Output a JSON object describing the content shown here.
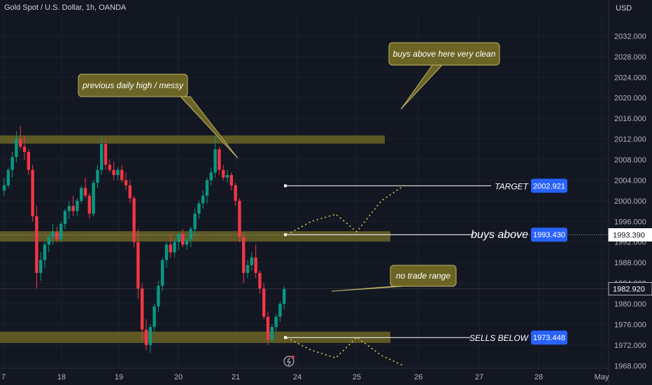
{
  "header": {
    "title": "Gold Spot / U.S. Dollar, 1h, OANDA",
    "currency": "USD"
  },
  "chart_data": {
    "type": "candlestick",
    "x_axis": {
      "ticks": [
        "7",
        "18",
        "19",
        "20",
        "21",
        "24",
        "25",
        "26",
        "27",
        "28",
        "May"
      ]
    },
    "y_axis": {
      "range": [
        1967.5,
        2036.0
      ],
      "ticks": [
        "2032.000",
        "2028.000",
        "2024.000",
        "2020.000",
        "2016.000",
        "2012.000",
        "2008.000",
        "2004.000",
        "2000.000",
        "1996.000",
        "1992.000",
        "1988.000",
        "1984.000",
        "1980.000",
        "1976.000",
        "1972.000",
        "1968.000"
      ],
      "price_labels": [
        {
          "text": "1993.390",
          "value": 1993.39,
          "style": "light"
        },
        {
          "text": "1982.920",
          "value": 1982.92,
          "style": "dark"
        }
      ]
    },
    "zones": [
      {
        "top": 2012.7,
        "bottom": 2011.1,
        "start": 0,
        "end": 550
      },
      {
        "top": 1994.1,
        "bottom": 1992.1,
        "start": 0,
        "end": 558
      },
      {
        "top": 1974.6,
        "bottom": 1972.4,
        "start": 0,
        "end": 558
      }
    ],
    "levels": [
      {
        "label": "TARGET",
        "price_text": "2002.921",
        "value": 2002.921
      },
      {
        "label": "buys above",
        "price_text": "1993.430",
        "value": 1993.43
      },
      {
        "label": "SELLS BELOW",
        "price_text": "1973.448",
        "value": 1973.448
      }
    ],
    "annotations": [
      {
        "text": "previous daily high / messy"
      },
      {
        "text": "buys above here very clean"
      },
      {
        "text": "no trade range"
      }
    ],
    "projection_up": [
      [
        1993.4,
        1996.0,
        1997.4,
        1994.0,
        2000.0,
        2003.0
      ]
    ],
    "projection_down": [
      [
        1973.4,
        1971.0,
        1969.5,
        1973.5,
        1970.0,
        1967.9
      ]
    ],
    "candles": [
      [
        2002.0,
        2004.5,
        2001.0,
        2003.0
      ],
      [
        2003.0,
        2006.5,
        2002.5,
        2006.0
      ],
      [
        2006.0,
        2009.5,
        2004.5,
        2008.5
      ],
      [
        2008.5,
        2013.5,
        2007.5,
        2012.0
      ],
      [
        2012.0,
        2014.5,
        2010.0,
        2010.5
      ],
      [
        2010.5,
        2012.5,
        2008.0,
        2009.5
      ],
      [
        2009.5,
        2010.0,
        2005.0,
        2006.0
      ],
      [
        2006.0,
        2007.0,
        1996.0,
        1997.0
      ],
      [
        1997.0,
        1999.0,
        1983.0,
        1986.0
      ],
      [
        1986.0,
        1990.0,
        1984.5,
        1988.5
      ],
      [
        1988.5,
        1992.0,
        1987.0,
        1991.5
      ],
      [
        1991.5,
        1993.5,
        1990.0,
        1993.0
      ],
      [
        1993.0,
        1995.5,
        1991.5,
        1994.0
      ],
      [
        1994.0,
        1995.0,
        1992.0,
        1992.5
      ],
      [
        1992.5,
        1996.0,
        1992.0,
        1995.5
      ],
      [
        1995.5,
        1998.5,
        1994.5,
        1998.0
      ],
      [
        1998.0,
        2000.0,
        1996.5,
        1999.0
      ],
      [
        1999.0,
        2001.0,
        1997.0,
        1998.0
      ],
      [
        1998.0,
        2000.5,
        1997.0,
        2000.0
      ],
      [
        2000.0,
        2003.0,
        1999.5,
        2002.5
      ],
      [
        2002.5,
        2004.5,
        2000.5,
        2001.0
      ],
      [
        2001.0,
        2001.5,
        1996.5,
        1997.5
      ],
      [
        1997.5,
        2004.0,
        1997.0,
        2003.5
      ],
      [
        2003.5,
        2007.0,
        2002.5,
        2006.0
      ],
      [
        2006.0,
        2012.5,
        2005.0,
        2011.0
      ],
      [
        2011.0,
        2012.0,
        2006.0,
        2007.0
      ],
      [
        2007.0,
        2008.0,
        2005.5,
        2006.0
      ],
      [
        2006.0,
        2007.5,
        2004.0,
        2005.0
      ],
      [
        2005.0,
        2006.5,
        2004.0,
        2006.0
      ],
      [
        2006.0,
        2007.0,
        2003.5,
        2004.0
      ],
      [
        2004.0,
        2005.5,
        2002.0,
        2003.0
      ],
      [
        2003.0,
        2004.0,
        1999.5,
        2000.5
      ],
      [
        2000.5,
        2001.0,
        1991.0,
        1992.0
      ],
      [
        1992.0,
        1994.5,
        1981.0,
        1983.0
      ],
      [
        1983.0,
        1984.0,
        1973.0,
        1975.0
      ],
      [
        1975.0,
        1977.0,
        1971.0,
        1972.0
      ],
      [
        1972.0,
        1976.0,
        1970.5,
        1975.5
      ],
      [
        1975.5,
        1980.0,
        1974.5,
        1979.5
      ],
      [
        1979.5,
        1984.5,
        1978.5,
        1983.5
      ],
      [
        1983.5,
        1989.0,
        1982.5,
        1988.5
      ],
      [
        1988.5,
        1992.0,
        1987.0,
        1991.5
      ],
      [
        1991.5,
        1993.5,
        1989.0,
        1990.0
      ],
      [
        1990.0,
        1992.5,
        1989.0,
        1992.0
      ],
      [
        1992.0,
        1994.0,
        1990.5,
        1993.5
      ],
      [
        1993.5,
        1994.5,
        1991.0,
        1991.5
      ],
      [
        1991.5,
        1993.0,
        1990.5,
        1992.5
      ],
      [
        1992.5,
        1995.0,
        1991.0,
        1994.5
      ],
      [
        1994.5,
        1998.5,
        1993.0,
        1997.5
      ],
      [
        1997.5,
        2000.0,
        1996.5,
        1999.5
      ],
      [
        1999.5,
        2002.0,
        1998.5,
        2001.0
      ],
      [
        2001.0,
        2004.5,
        1999.5,
        2004.0
      ],
      [
        2004.0,
        2006.5,
        2003.0,
        2005.5
      ],
      [
        2005.5,
        2012.5,
        2004.5,
        2010.0
      ],
      [
        2010.0,
        2010.5,
        2005.0,
        2006.0
      ],
      [
        2006.0,
        2007.0,
        2004.0,
        2004.5
      ],
      [
        2004.5,
        2006.0,
        2003.5,
        2005.0
      ],
      [
        2005.0,
        2005.5,
        2002.0,
        2003.0
      ],
      [
        2003.0,
        2003.5,
        1999.0,
        2000.0
      ],
      [
        2000.0,
        2000.5,
        1992.0,
        1993.0
      ],
      [
        1993.0,
        1994.0,
        1984.0,
        1986.0
      ],
      [
        1986.0,
        1988.5,
        1985.0,
        1987.5
      ],
      [
        1987.5,
        1990.0,
        1986.5,
        1989.0
      ],
      [
        1989.0,
        1991.5,
        1985.0,
        1986.0
      ],
      [
        1986.0,
        1986.5,
        1982.0,
        1983.0
      ],
      [
        1983.0,
        1984.0,
        1977.0,
        1977.5
      ],
      [
        1977.5,
        1978.5,
        1972.0,
        1973.0
      ],
      [
        1973.0,
        1976.0,
        1972.5,
        1975.5
      ],
      [
        1975.5,
        1978.0,
        1974.5,
        1977.5
      ],
      [
        1977.5,
        1980.5,
        1976.5,
        1980.0
      ],
      [
        1980.0,
        1983.5,
        1979.0,
        1982.9
      ]
    ]
  }
}
